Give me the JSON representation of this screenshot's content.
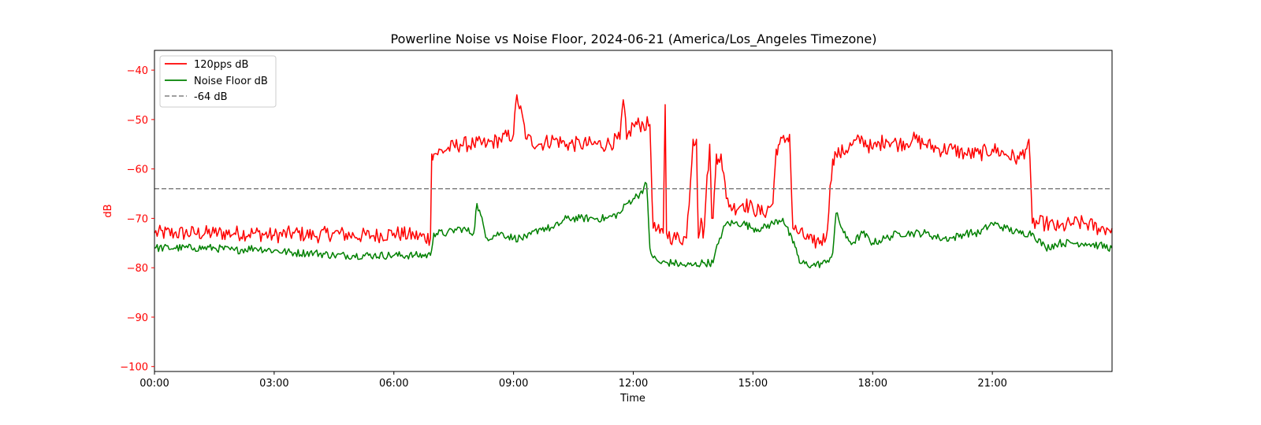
{
  "chart_data": {
    "type": "line",
    "title": "Powerline Noise vs Noise Floor, 2024-06-21 (America/Los_Angeles Timezone)",
    "xlabel": "Time",
    "ylabel": "dB",
    "ylabel_color": "#ff0000",
    "ytick_color": "#ff0000",
    "xlim": [
      "00:00",
      "24:00"
    ],
    "ylim": [
      -101,
      -36
    ],
    "xticks": [
      "00:00",
      "03:00",
      "06:00",
      "09:00",
      "12:00",
      "15:00",
      "18:00",
      "21:00"
    ],
    "yticks": [
      -40,
      -50,
      -60,
      -70,
      -80,
      -90,
      -100
    ],
    "ytick_labels": [
      "−40",
      "−50",
      "−60",
      "−70",
      "−80",
      "−90",
      "−100"
    ],
    "legend_position": "upper-left",
    "grid": false,
    "threshold": {
      "name": "-64 dB",
      "value": -64,
      "color": "#808080",
      "style": "dashed"
    },
    "series": [
      {
        "name": "120pps dB",
        "color": "#ff0000",
        "x": [
          "00:00",
          "00:30",
          "01:00",
          "01:30",
          "02:00",
          "02:30",
          "03:00",
          "03:30",
          "04:00",
          "04:30",
          "05:00",
          "05:30",
          "06:00",
          "06:30",
          "06:55",
          "06:57",
          "07:00",
          "07:20",
          "07:40",
          "08:00",
          "08:20",
          "08:40",
          "09:00",
          "09:05",
          "09:20",
          "09:40",
          "10:00",
          "10:20",
          "10:40",
          "11:00",
          "11:20",
          "11:40",
          "11:45",
          "11:50",
          "12:00",
          "12:15",
          "12:25",
          "12:30",
          "12:40",
          "12:45",
          "12:48",
          "12:50",
          "13:00",
          "13:20",
          "13:30",
          "13:35",
          "13:38",
          "13:42",
          "13:45",
          "13:55",
          "13:58",
          "14:00",
          "14:05",
          "14:08",
          "14:12",
          "14:20",
          "14:30",
          "14:45",
          "15:00",
          "15:15",
          "15:30",
          "15:35",
          "15:40",
          "15:50",
          "15:55",
          "16:00",
          "16:10",
          "16:30",
          "16:50",
          "17:00",
          "17:05",
          "17:10",
          "17:30",
          "17:45",
          "18:00",
          "18:20",
          "18:40",
          "19:00",
          "19:20",
          "19:40",
          "20:00",
          "20:20",
          "20:40",
          "21:00",
          "21:20",
          "21:40",
          "21:50",
          "21:55",
          "22:00",
          "22:20",
          "22:40",
          "23:00",
          "23:20",
          "23:40",
          "24:00"
        ],
        "y": [
          -73,
          -73,
          -73,
          -73,
          -73,
          -73,
          -73.5,
          -73,
          -73.5,
          -73,
          -73.5,
          -73.5,
          -73,
          -73.5,
          -74,
          -57,
          -57,
          -56,
          -55,
          -55,
          -55,
          -54,
          -53,
          -45,
          -54,
          -55,
          -54,
          -55,
          -55,
          -55,
          -55,
          -54,
          -46,
          -54,
          -51,
          -51,
          -51,
          -72,
          -73,
          -73,
          -47,
          -73,
          -74,
          -74,
          -54,
          -54,
          -74,
          -70,
          -74,
          -55,
          -70,
          -70,
          -57,
          -58,
          -57,
          -66,
          -68,
          -67,
          -68,
          -69,
          -67,
          -56,
          -55,
          -54,
          -53,
          -72,
          -73,
          -75,
          -74,
          -58,
          -57,
          -57,
          -55,
          -54,
          -56,
          -54,
          -55,
          -54,
          -55,
          -56,
          -56,
          -57,
          -57,
          -56,
          -57,
          -58,
          -56,
          -54,
          -71,
          -71,
          -72,
          -71,
          -71,
          -72,
          -72
        ]
      },
      {
        "name": "Noise Floor dB",
        "color": "#008000",
        "x": [
          "00:00",
          "00:30",
          "01:00",
          "01:30",
          "02:00",
          "02:30",
          "03:00",
          "03:30",
          "04:00",
          "04:30",
          "05:00",
          "05:30",
          "06:00",
          "06:30",
          "06:55",
          "07:00",
          "07:20",
          "07:40",
          "08:00",
          "08:05",
          "08:20",
          "08:40",
          "09:00",
          "09:20",
          "09:40",
          "10:00",
          "10:20",
          "10:40",
          "11:00",
          "11:20",
          "11:40",
          "11:50",
          "12:00",
          "12:10",
          "12:20",
          "12:25",
          "12:30",
          "12:40",
          "13:00",
          "13:15",
          "13:30",
          "13:45",
          "14:00",
          "14:10",
          "14:20",
          "14:30",
          "14:45",
          "15:00",
          "15:15",
          "15:30",
          "15:45",
          "16:00",
          "16:05",
          "16:10",
          "16:30",
          "16:50",
          "17:00",
          "17:05",
          "17:20",
          "17:30",
          "17:45",
          "18:00",
          "18:20",
          "18:40",
          "19:00",
          "19:20",
          "19:40",
          "20:00",
          "20:20",
          "20:40",
          "21:00",
          "21:20",
          "21:40",
          "21:55",
          "22:00",
          "22:20",
          "22:40",
          "23:00",
          "23:20",
          "23:40",
          "24:00"
        ],
        "y": [
          -76,
          -76,
          -76,
          -76,
          -76.5,
          -76,
          -76.5,
          -77,
          -77,
          -77.5,
          -77.5,
          -77.5,
          -77.5,
          -77.5,
          -77.5,
          -73,
          -73,
          -72,
          -73,
          -67,
          -74,
          -73,
          -74,
          -74,
          -72,
          -72,
          -70,
          -70,
          -70,
          -70,
          -69,
          -67,
          -66,
          -65,
          -63,
          -76,
          -78,
          -79,
          -79,
          -79.5,
          -79.5,
          -79,
          -79,
          -74,
          -71,
          -71,
          -71,
          -72,
          -72,
          -71,
          -70,
          -75,
          -76,
          -79,
          -79.5,
          -79,
          -77,
          -69,
          -74,
          -75,
          -73,
          -75,
          -74,
          -73,
          -73,
          -73,
          -74,
          -74,
          -73,
          -73,
          -71,
          -72,
          -73,
          -73,
          -73,
          -76,
          -75,
          -75,
          -75,
          -75.5,
          -76
        ]
      }
    ]
  }
}
